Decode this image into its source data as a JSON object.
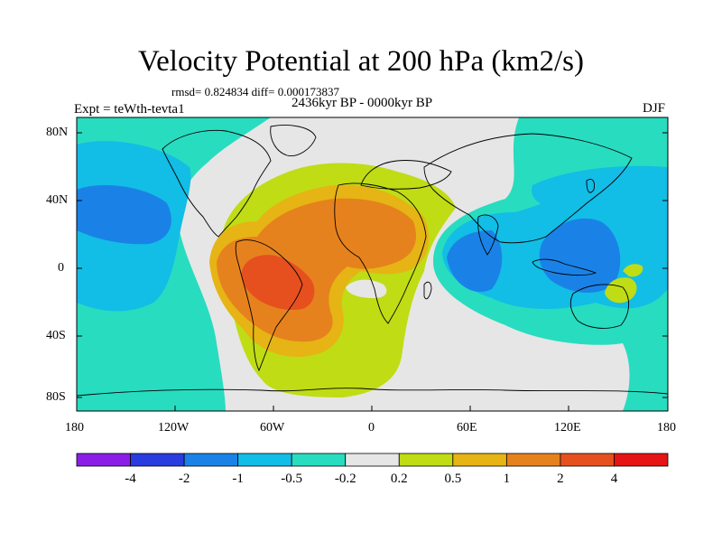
{
  "title": "Velocity Potential at 200 hPa (km2/s)",
  "stats": "rmsd= 0.824834 diff= 0.000173837",
  "period": "2436kyr BP - 0000kyr BP",
  "experiment": "Expt = teWth-tevta1",
  "season": "DJF",
  "lat_ticks": [
    "80N",
    "40N",
    "0",
    "40S",
    "80S"
  ],
  "lon_ticks": [
    "180",
    "120W",
    "60W",
    "0",
    "60E",
    "120E",
    "180"
  ],
  "colorbar": {
    "labels": [
      "-4",
      "-2",
      "-1",
      "-0.5",
      "-0.2",
      "0.2",
      "0.5",
      "1",
      "2",
      "4"
    ],
    "colors": [
      "#8a1ee6",
      "#2a3be0",
      "#1a82e6",
      "#12bde6",
      "#28dcc0",
      "#e6e6e6",
      "#c0dc14",
      "#e6b414",
      "#e6821e",
      "#e6501e",
      "#e61414"
    ]
  },
  "fields": {
    "background": "#e6e6e6",
    "ocean_land": "#ffffff"
  }
}
